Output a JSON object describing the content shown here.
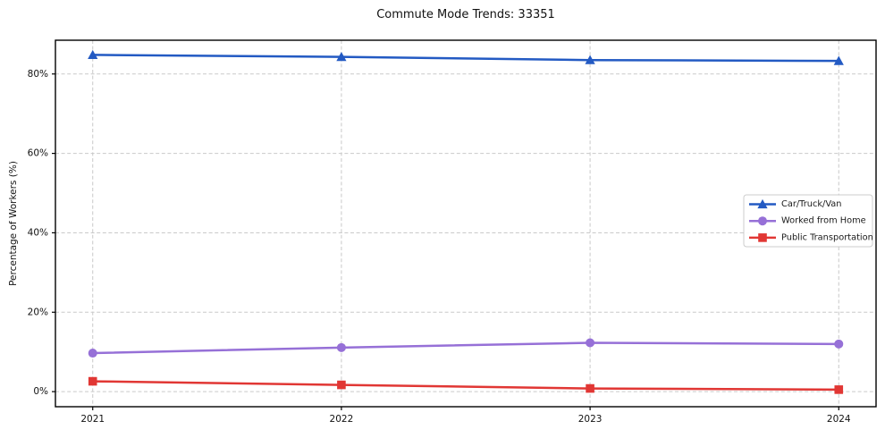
{
  "figure": {
    "title": "Commute Mode Trends: 33351",
    "ylabel": "Percentage of Workers (%)"
  },
  "chart_data": {
    "type": "line",
    "title": "Commute Mode Trends: 33351",
    "xlabel": "",
    "ylabel": "Percentage of Workers (%)",
    "categories": [
      "2021",
      "2022",
      "2023",
      "2024"
    ],
    "x": [
      2021,
      2022,
      2023,
      2024
    ],
    "series": [
      {
        "name": "Car/Truck/Van",
        "values": [
          84.8,
          84.3,
          83.5,
          83.3
        ],
        "color": "#235ac3",
        "marker": "triangle"
      },
      {
        "name": "Worked from Home",
        "values": [
          9.7,
          11.1,
          12.3,
          12.0
        ],
        "color": "#9670d7",
        "marker": "circle"
      },
      {
        "name": "Public Transportation",
        "values": [
          2.6,
          1.7,
          0.8,
          0.5
        ],
        "color": "#e13734",
        "marker": "square"
      }
    ],
    "xlim": [
      2020.85,
      2024.15
    ],
    "ylim": [
      -3.8,
      88.5
    ],
    "yticks": [
      {
        "value": 0,
        "label": "0%"
      },
      {
        "value": 20,
        "label": "20%"
      },
      {
        "value": 40,
        "label": "40%"
      },
      {
        "value": 60,
        "label": "60%"
      },
      {
        "value": 80,
        "label": "80%"
      }
    ],
    "grid": true,
    "legend": {
      "position": "center right"
    }
  }
}
